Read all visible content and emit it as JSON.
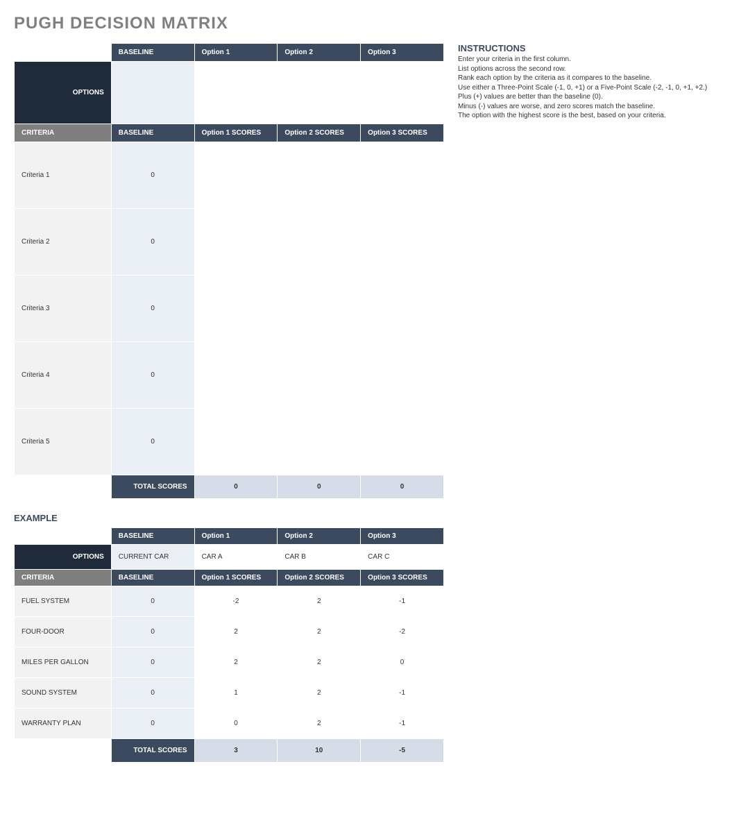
{
  "title": "PUGH DECISION MATRIX",
  "main": {
    "header_options_label": "OPTIONS",
    "header_criteria_label": "CRITERIA",
    "option_headers": [
      "BASELINE",
      "Option 1",
      "Option 2",
      "Option 3"
    ],
    "option_values": [
      "",
      "",
      "",
      ""
    ],
    "score_headers": [
      "BASELINE",
      "Option 1 SCORES",
      "Option 2 SCORES",
      "Option 3 SCORES"
    ],
    "criteria": [
      {
        "label": "Criteria 1",
        "baseline": "0",
        "scores": [
          "",
          "",
          ""
        ]
      },
      {
        "label": "Criteria 2",
        "baseline": "0",
        "scores": [
          "",
          "",
          ""
        ]
      },
      {
        "label": "Criteria 3",
        "baseline": "0",
        "scores": [
          "",
          "",
          ""
        ]
      },
      {
        "label": "Criteria 4",
        "baseline": "0",
        "scores": [
          "",
          "",
          ""
        ]
      },
      {
        "label": "Criteria 5",
        "baseline": "0",
        "scores": [
          "",
          "",
          ""
        ]
      }
    ],
    "totals_label": "TOTAL SCORES",
    "totals": [
      "0",
      "0",
      "0"
    ],
    "row_height_options": 90,
    "row_height_header": 26,
    "row_height_criteria": 96,
    "row_height_totals": 34
  },
  "instructions": {
    "title": "INSTRUCTIONS",
    "lines": [
      "Enter your criteria in the first column.",
      "List options across the second row.",
      "Rank each option by the criteria as it compares to the baseline.",
      "Use either a Three-Point Scale (-1, 0, +1) or a Five-Point Scale (-2, -1, 0, +1, +2.)",
      "Plus (+) values are better than the baseline (0).",
      "Minus (-) values are worse, and zero scores match the baseline.",
      "The option with the highest score is the best, based on your criteria."
    ]
  },
  "example_title": "EXAMPLE",
  "example": {
    "header_options_label": "OPTIONS",
    "header_criteria_label": "CRITERIA",
    "option_headers": [
      "BASELINE",
      "Option 1",
      "Option 2",
      "Option 3"
    ],
    "option_values": [
      "CURRENT CAR",
      "CAR A",
      "CAR B",
      "CAR C"
    ],
    "score_headers": [
      "BASELINE",
      "Option 1 SCORES",
      "Option 2 SCORES",
      "Option 3 SCORES"
    ],
    "criteria": [
      {
        "label": "FUEL SYSTEM",
        "baseline": "0",
        "scores": [
          "-2",
          "2",
          "-1"
        ]
      },
      {
        "label": "FOUR-DOOR",
        "baseline": "0",
        "scores": [
          "2",
          "2",
          "-2"
        ]
      },
      {
        "label": "MILES PER GALLON",
        "baseline": "0",
        "scores": [
          "2",
          "2",
          "0"
        ]
      },
      {
        "label": "SOUND SYSTEM",
        "baseline": "0",
        "scores": [
          "1",
          "2",
          "-1"
        ]
      },
      {
        "label": "WARRANTY PLAN",
        "baseline": "0",
        "scores": [
          "0",
          "2",
          "-1"
        ]
      }
    ],
    "totals_label": "TOTAL SCORES",
    "totals": [
      "3",
      "10",
      "-5"
    ],
    "row_height_options": 36,
    "row_height_header": 24,
    "row_height_criteria": 44,
    "row_height_totals": 34
  },
  "colors": {
    "title_gray": "#808080",
    "hdr_dark": "#3b4a5e",
    "hdr_darker": "#1f2a3a",
    "hdr_gray": "#7f7f7f",
    "criteria_bg": "#f2f2f2",
    "baseline_bg": "#eaeff5",
    "totals_bg": "#d6dde8",
    "border": "#ffffff"
  }
}
